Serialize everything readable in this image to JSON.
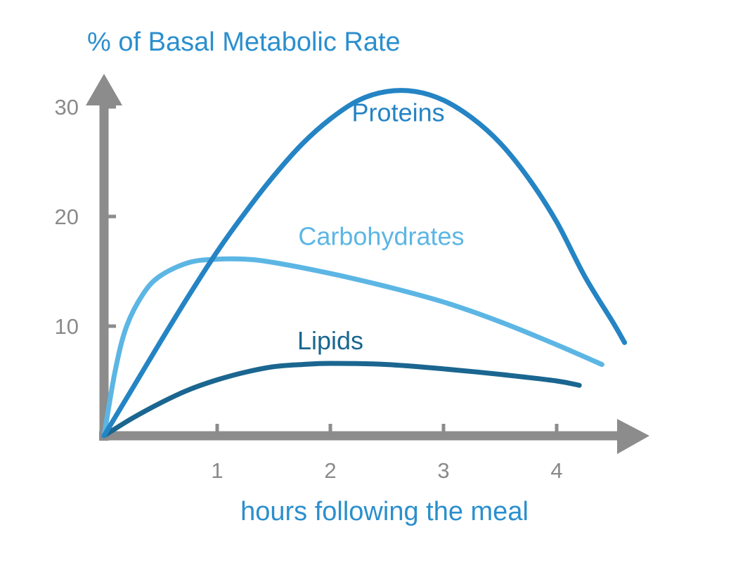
{
  "colors": {
    "axis": "#8c8c8c",
    "title": "#2b8fcd",
    "proteins": "#2484c4",
    "carbohydrates": "#5cb6e4",
    "lipids": "#1a6690"
  },
  "chart_data": {
    "type": "line",
    "title": "",
    "ylabel": "% of Basal Metabolic Rate",
    "xlabel": "hours following the meal",
    "xlim": [
      0,
      4.8
    ],
    "ylim": [
      0,
      32
    ],
    "x_ticks": [
      "1",
      "2",
      "3",
      "4"
    ],
    "y_ticks": [
      "10",
      "20",
      "30"
    ],
    "grid": false,
    "legend": "none",
    "series": [
      {
        "name": "Proteins",
        "x": [
          0,
          0.25,
          0.5,
          0.75,
          1,
          1.25,
          1.5,
          1.75,
          2,
          2.25,
          2.5,
          2.75,
          3,
          3.25,
          3.5,
          3.75,
          4,
          4.25,
          4.5,
          4.6
        ],
        "values": [
          0,
          4.3,
          8.6,
          12.8,
          16.8,
          20.4,
          23.7,
          26.6,
          28.9,
          30.6,
          31.4,
          31.4,
          30.6,
          29.0,
          26.7,
          23.5,
          19.5,
          14.5,
          10.3,
          8.5
        ]
      },
      {
        "name": "Carbohydrates",
        "x": [
          0,
          0.1,
          0.2,
          0.35,
          0.5,
          0.75,
          1,
          1.25,
          1.5,
          2,
          2.5,
          3,
          3.5,
          4,
          4.4
        ],
        "values": [
          0,
          6.0,
          10.0,
          13.0,
          14.6,
          15.8,
          16.1,
          16.1,
          15.8,
          14.8,
          13.6,
          12.2,
          10.4,
          8.3,
          6.5
        ]
      },
      {
        "name": "Lipids",
        "x": [
          0,
          0.25,
          0.5,
          0.75,
          1,
          1.25,
          1.5,
          1.75,
          2,
          2.5,
          3,
          3.5,
          4,
          4.2
        ],
        "values": [
          0,
          1.6,
          3.0,
          4.2,
          5.1,
          5.8,
          6.3,
          6.5,
          6.6,
          6.5,
          6.1,
          5.6,
          5.0,
          4.6
        ]
      }
    ]
  }
}
